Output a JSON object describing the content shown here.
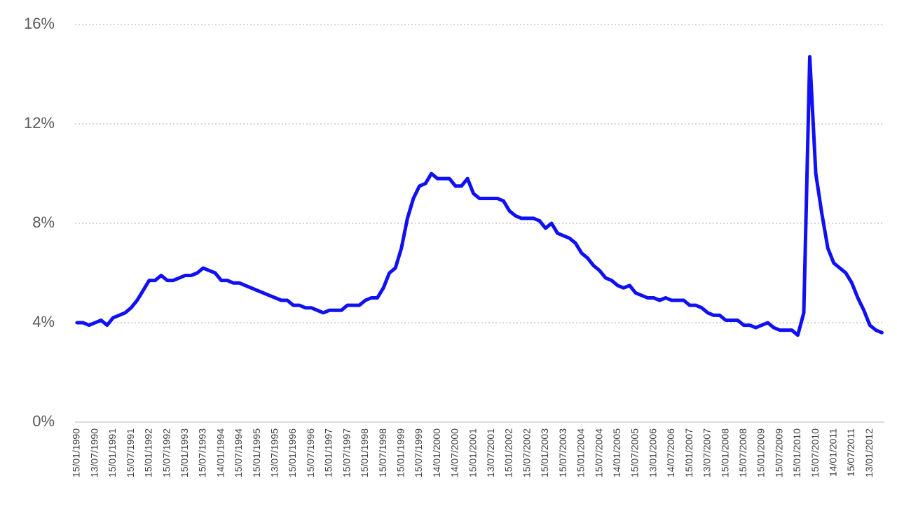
{
  "chart_data": {
    "type": "line",
    "color": "#1010f5",
    "grid": true,
    "ylim": [
      0,
      16
    ],
    "yticks": [
      {
        "value": 0,
        "label": "0%"
      },
      {
        "value": 4,
        "label": "4%"
      },
      {
        "value": 8,
        "label": "8%"
      },
      {
        "value": 12,
        "label": "12%"
      },
      {
        "value": 16,
        "label": "16%"
      }
    ],
    "categories": [
      "15/01/1990",
      null,
      null,
      "13/07/1990",
      null,
      null,
      "15/01/1991",
      null,
      null,
      "15/07/1991",
      null,
      null,
      "15/01/1992",
      null,
      null,
      "15/07/1992",
      null,
      null,
      "15/01/1993",
      null,
      null,
      "15/07/1993",
      null,
      null,
      "14/01/1994",
      null,
      null,
      "15/07/1994",
      null,
      null,
      "15/01/1995",
      null,
      null,
      "13/07/1995",
      null,
      null,
      "15/01/1996",
      null,
      null,
      "15/07/1996",
      null,
      null,
      "15/01/1997",
      null,
      null,
      "15/07/1997",
      null,
      null,
      "15/01/1998",
      null,
      null,
      "15/07/1998",
      null,
      null,
      "15/01/1999",
      null,
      null,
      "15/07/1999",
      null,
      null,
      "14/01/2000",
      null,
      null,
      "14/07/2000",
      null,
      null,
      "15/01/2001",
      null,
      null,
      "13/07/2001",
      null,
      null,
      "15/01/2002",
      null,
      null,
      "15/07/2002",
      null,
      null,
      "15/01/2003",
      null,
      null,
      "15/07/2003",
      null,
      null,
      "15/01/2004",
      null,
      null,
      "15/07/2004",
      null,
      null,
      "14/01/2005",
      null,
      null,
      "15/07/2005",
      null,
      null,
      "13/01/2006",
      null,
      null,
      "14/07/2006",
      null,
      null,
      "15/01/2007",
      null,
      null,
      "13/07/2007",
      null,
      null,
      "15/01/2008",
      null,
      null,
      "15/07/2008",
      null,
      null,
      "15/01/2009",
      null,
      null,
      "15/07/2009",
      null,
      null,
      "15/01/2010",
      null,
      null,
      "15/07/2010",
      null,
      null,
      "14/01/2011",
      null,
      null,
      "15/07/2011",
      null,
      null,
      "13/01/2012",
      null,
      null
    ],
    "values": [
      4.0,
      4.0,
      3.9,
      4.0,
      4.1,
      3.9,
      4.2,
      4.3,
      4.4,
      4.6,
      4.9,
      5.3,
      5.7,
      5.7,
      5.9,
      5.7,
      5.7,
      5.8,
      5.9,
      5.9,
      6.0,
      6.2,
      6.1,
      6.0,
      5.7,
      5.7,
      5.6,
      5.6,
      5.5,
      5.4,
      5.3,
      5.2,
      5.1,
      5.0,
      4.9,
      4.9,
      4.7,
      4.7,
      4.6,
      4.6,
      4.5,
      4.4,
      4.5,
      4.5,
      4.5,
      4.7,
      4.7,
      4.7,
      4.9,
      5.0,
      5.0,
      5.4,
      6.0,
      6.2,
      7.0,
      8.2,
      9.0,
      9.5,
      9.6,
      10.0,
      9.8,
      9.8,
      9.8,
      9.5,
      9.5,
      9.8,
      9.2,
      9.0,
      9.0,
      9.0,
      9.0,
      8.9,
      8.5,
      8.3,
      8.2,
      8.2,
      8.2,
      8.1,
      7.8,
      8.0,
      7.6,
      7.5,
      7.4,
      7.2,
      6.8,
      6.6,
      6.3,
      6.1,
      5.8,
      5.7,
      5.5,
      5.4,
      5.5,
      5.2,
      5.1,
      5.0,
      5.0,
      4.9,
      5.0,
      4.9,
      4.9,
      4.9,
      4.7,
      4.7,
      4.6,
      4.4,
      4.3,
      4.3,
      4.1,
      4.1,
      4.1,
      3.9,
      3.9,
      3.8,
      3.9,
      4.0,
      3.8,
      3.7,
      3.7,
      3.7,
      3.5,
      4.4,
      14.7,
      10.0,
      8.4,
      7.0,
      6.4,
      6.2,
      6.0,
      5.6,
      5.0,
      4.5,
      3.9,
      3.7,
      3.6
    ]
  }
}
